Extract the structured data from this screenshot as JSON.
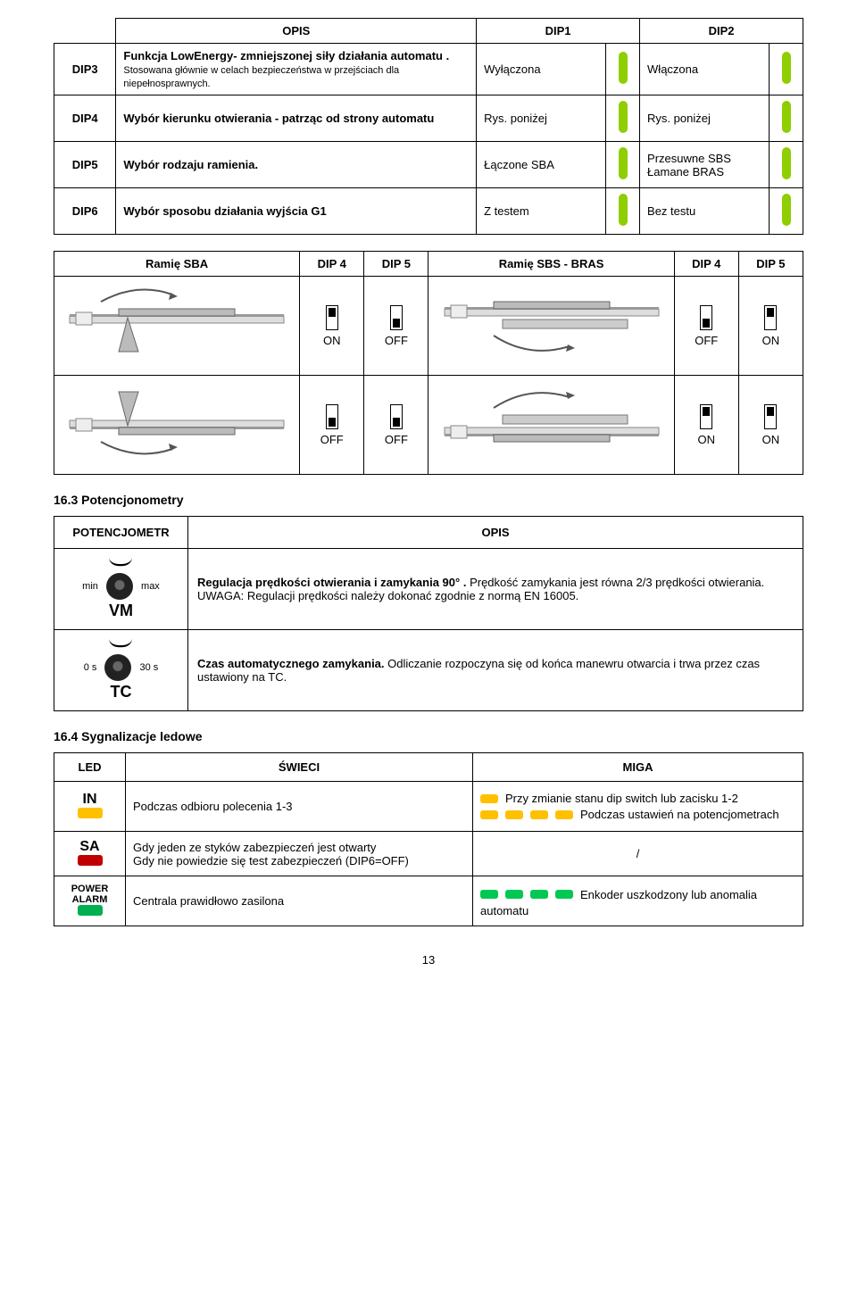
{
  "colors": {
    "green": "#8fce00",
    "darkgreen": "#00b050",
    "yellow": "#ffc000",
    "red": "#c00000",
    "greenled": "#00c853",
    "border": "#000000"
  },
  "dipTable": {
    "header": {
      "opis": "OPIS",
      "dip1": "DIP1",
      "dip2": "DIP2"
    },
    "rows": [
      {
        "id": "DIP3",
        "desc_bold": "Funkcja LowEnergy- zmniejszonej siły działania automatu .",
        "desc_rest": " Stosowana głównie w celach bezpieczeństwa w przejściach dla niepełnosprawnych.",
        "dip1": "Wyłączona",
        "dip2": "Włączona"
      },
      {
        "id": "DIP4",
        "desc_bold": "Wybór kierunku otwierania - patrząc od strony automatu",
        "desc_rest": "",
        "dip1": "Rys. poniżej",
        "dip2": "Rys. poniżej"
      },
      {
        "id": "DIP5",
        "desc_bold": "Wybór rodzaju ramienia.",
        "desc_rest": "",
        "dip1": "Łączone SBA",
        "dip2": "Przesuwne SBS\nŁamane BRAS"
      },
      {
        "id": "DIP6",
        "desc_bold": "Wybór sposobu działania wyjścia G1",
        "desc_rest": "",
        "dip1": "Z testem",
        "dip2": "Bez testu"
      }
    ]
  },
  "switchTable": {
    "headers": [
      "Ramię SBA",
      "DIP 4",
      "DIP 5",
      "Ramię SBS - BRAS",
      "DIP 4",
      "DIP 5"
    ],
    "rows": [
      {
        "d4": "ON",
        "d5": "OFF",
        "d4b": "OFF",
        "d5b": "ON"
      },
      {
        "d4": "OFF",
        "d5": "OFF",
        "d4b": "ON",
        "d5b": "ON"
      }
    ],
    "labels": {
      "on": "ON",
      "off": "OFF"
    }
  },
  "section_pot": "16.3 Potencjonometry",
  "potTable": {
    "hdr_left": "POTENCJOMETR",
    "hdr_right": "OPIS",
    "rows": [
      {
        "leftTop": "min",
        "leftRight": "max",
        "leftLabel": "VM",
        "desc_bold": "Regulacja prędkości otwierania i zamykania 90° . ",
        "desc_rest": "Prędkość zamykania jest równa 2/3 prędkości otwierania.\nUWAGA: Regulacji prędkości należy dokonać zgodnie z normą EN 16005."
      },
      {
        "leftTop": "0 s",
        "leftRight": "30 s",
        "leftLabel": "TC",
        "desc_bold": "Czas automatycznego zamykania.",
        "desc_rest": " Odliczanie rozpoczyna się od końca manewru otwarcia i trwa przez czas ustawiony na TC."
      }
    ]
  },
  "section_led": "16.4 Sygnalizacje ledowe",
  "ledTable": {
    "hdr": [
      "LED",
      "ŚWIECI",
      "MIGA"
    ],
    "rows": [
      {
        "led_label": "IN",
        "led_color": "#ffc000",
        "swieci": "Podczas odbioru polecenia 1-3",
        "miga1": "Przy zmianie stanu dip switch  lub zacisku 1-2",
        "miga2": "Podczas ustawień na potencjometrach"
      },
      {
        "led_label": "SA",
        "led_color": "#c00000",
        "swieci": "Gdy jeden ze styków zabezpieczeń jest otwarty\nGdy nie powiedzie się test zabezpieczeń (DIP6=OFF)",
        "miga_single": "/"
      },
      {
        "led_label": "POWER\nALARM",
        "led_color": "#00b050",
        "swieci": "Centrala prawidłowo zasilona",
        "miga_text": "Enkoder uszkodzony lub anomalia",
        "miga_prefix": "automatu"
      }
    ]
  },
  "page": "13"
}
